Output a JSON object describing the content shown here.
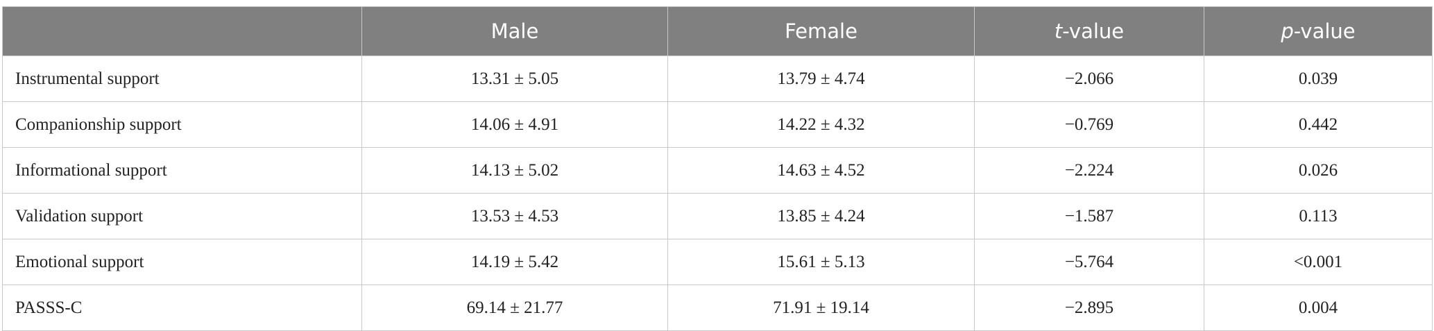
{
  "table": {
    "columns": [
      "Male",
      "Female",
      {
        "italic": "t",
        "text": "-value"
      },
      {
        "italic": "p",
        "text": "-value"
      }
    ],
    "rows": [
      [
        "Instrumental support",
        "13.31 ± 5.05",
        "13.79 ± 4.74",
        "−2.066",
        "0.039"
      ],
      [
        "Companionship support",
        "14.06 ± 4.91",
        "14.22 ± 4.32",
        "−0.769",
        "0.442"
      ],
      [
        "Informational support",
        "14.13 ± 5.02",
        "14.63 ± 4.52",
        "−2.224",
        "0.026"
      ],
      [
        "Validation support",
        "13.53 ± 4.53",
        "13.85 ± 4.24",
        "−1.587",
        "0.113"
      ],
      [
        "Emotional support",
        "14.19 ± 5.42",
        "15.61 ± 5.13",
        "−5.764",
        "<0.001"
      ],
      [
        "PASSS-C",
        "69.14 ± 21.77",
        "71.91 ± 19.14",
        "−2.895",
        "0.004"
      ]
    ]
  }
}
